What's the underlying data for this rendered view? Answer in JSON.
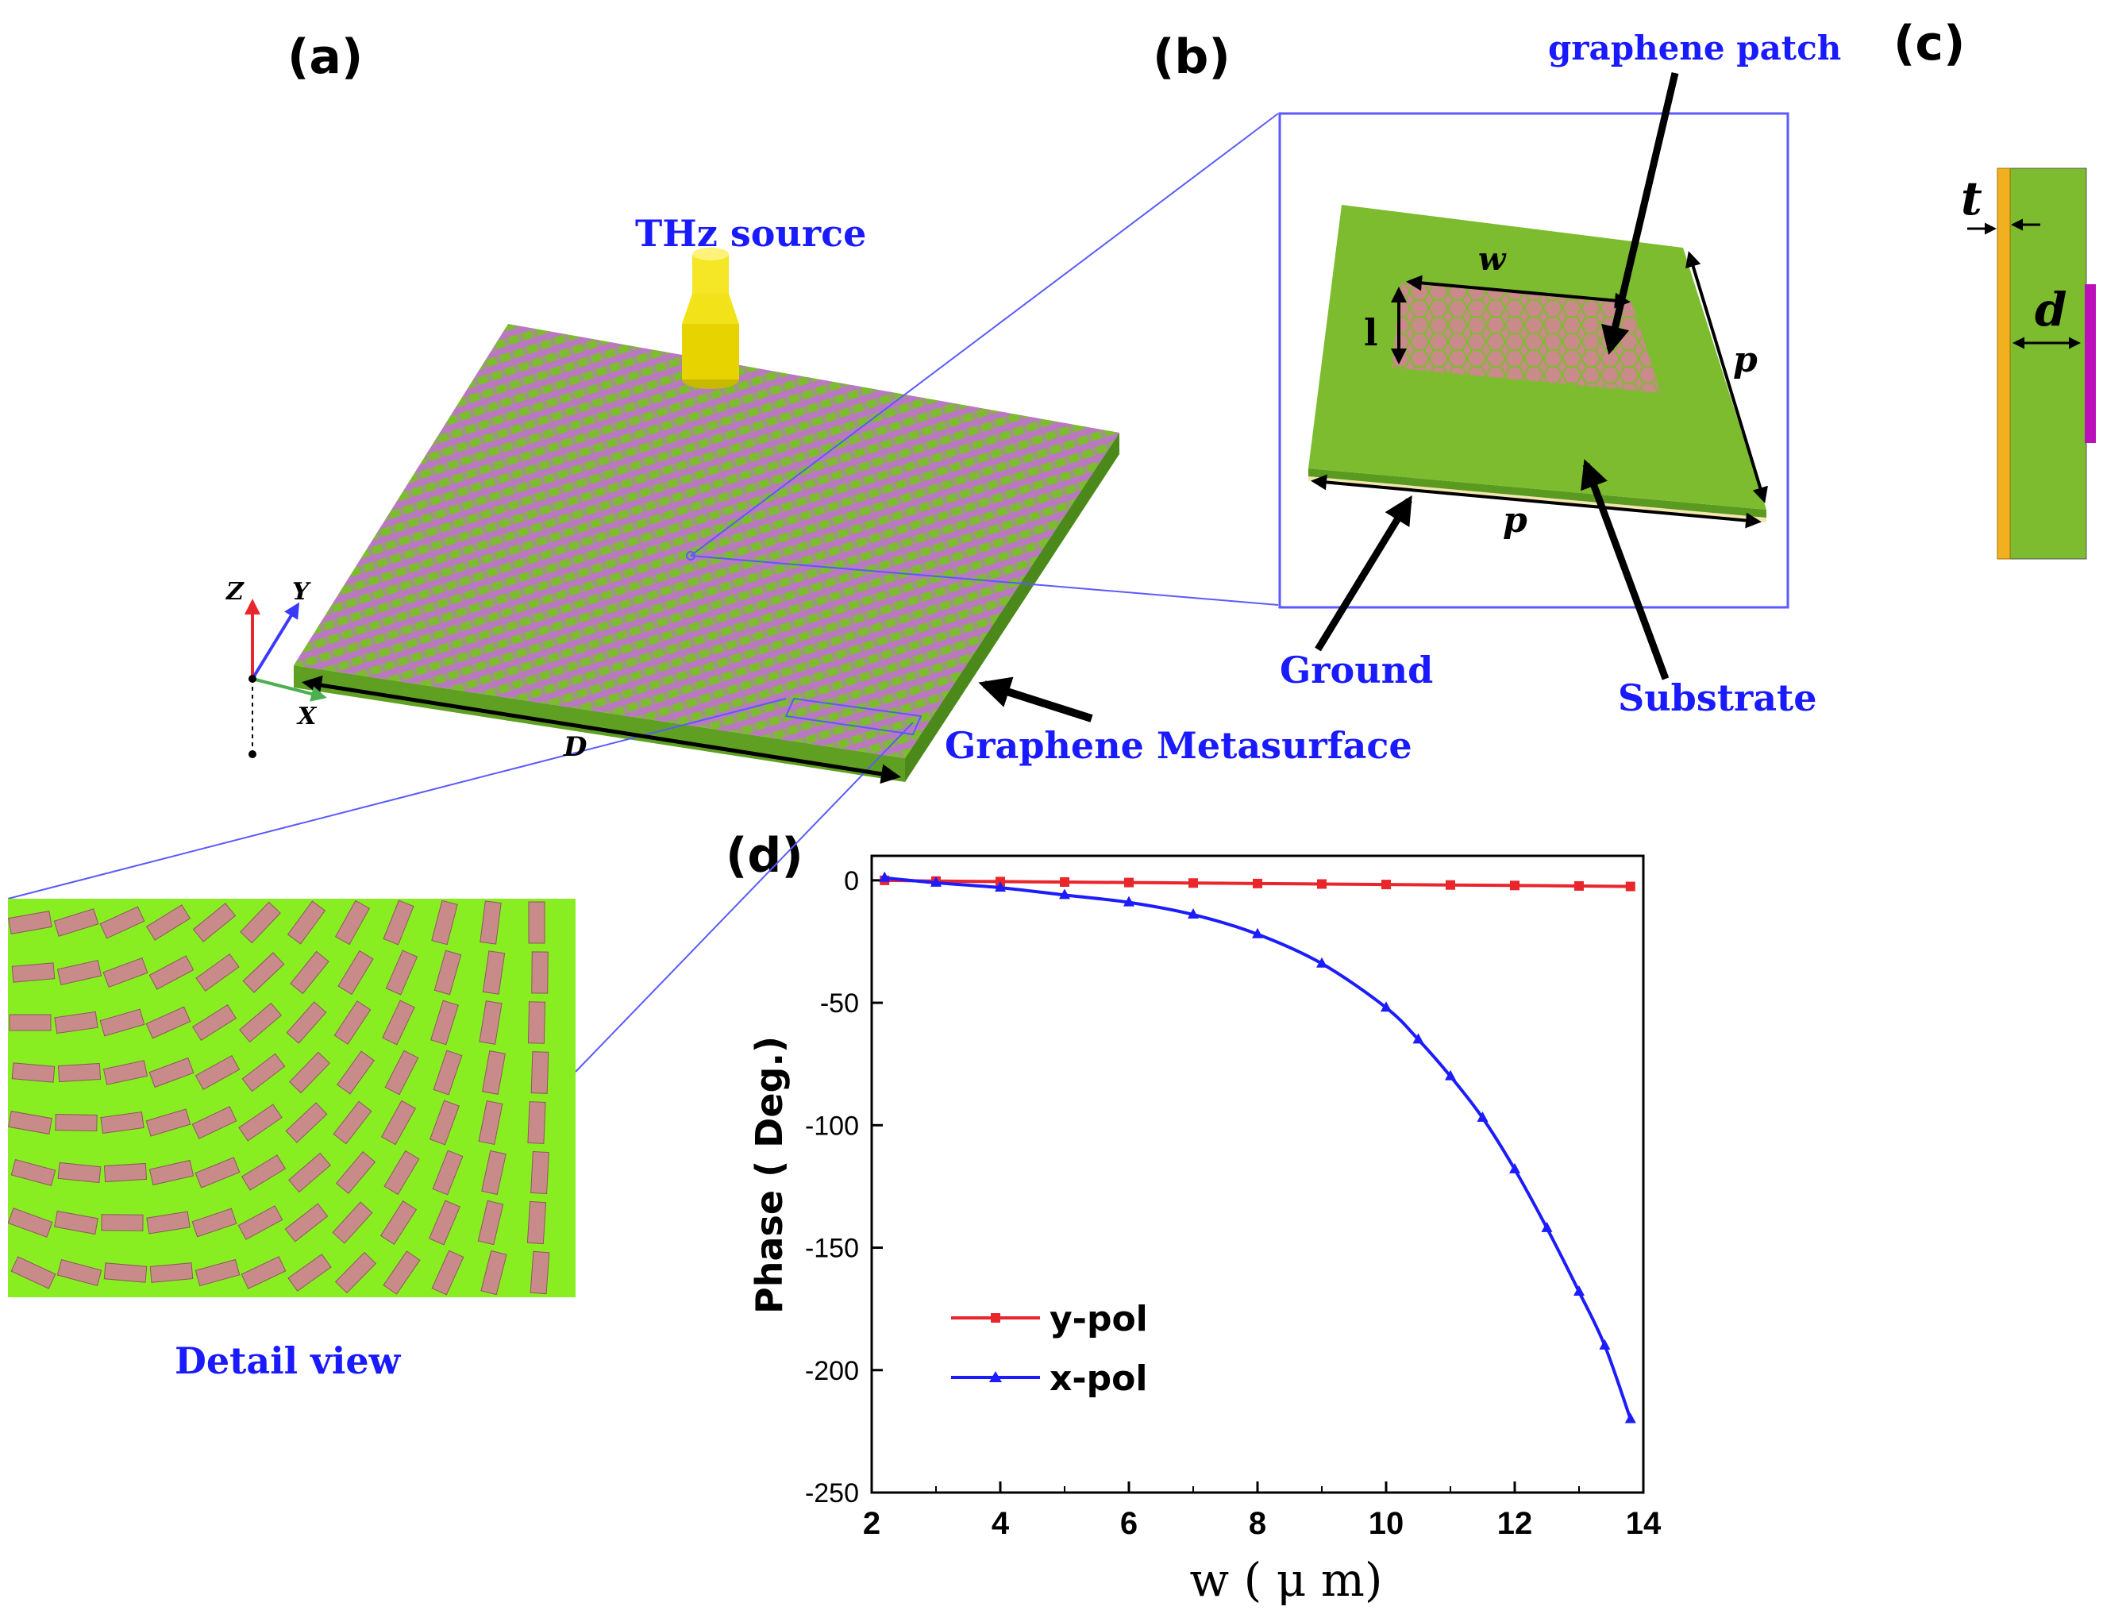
{
  "panels": {
    "a": "(a)",
    "b": "(b)",
    "c": "(c)",
    "d": "(d)"
  },
  "panel_a": {
    "source_label": "THz source",
    "metasurface_label": "Graphene Metasurface",
    "dimension_label": "D",
    "axis_z": "Z",
    "axis_y": "Y",
    "axis_x": "X",
    "detail_label": "Detail view"
  },
  "panel_b": {
    "patch_label": "graphene patch",
    "width_label": "w",
    "length_label": "l",
    "period_label_side": "p",
    "period_label_bottom": "p",
    "ground_label": "Ground",
    "substrate_label": "Substrate"
  },
  "panel_c": {
    "thickness_label": "t",
    "depth_label": "d"
  },
  "colors": {
    "substrate_green": "#7cbc2e",
    "detail_green": "#88ee22",
    "patch_pink": "#c98a8a",
    "ground_gold": "#f0b020",
    "graphene_magenta": "#bb11bb",
    "label_blue": "#1a1aff",
    "y_pol": "#e8262b",
    "x_pol": "#1c1cff"
  },
  "chart_data": {
    "type": "line",
    "xlabel": "w ( μ m)",
    "ylabel": "Phase ( Deg.)",
    "xlim": [
      2,
      14
    ],
    "ylim": [
      -250,
      10
    ],
    "xticks": [
      "2",
      "4",
      "6",
      "8",
      "10",
      "12",
      "14"
    ],
    "yticks": [
      "0",
      "-50",
      "-100",
      "-150",
      "-200",
      "-250"
    ],
    "legend_position": "lower-left",
    "series": [
      {
        "name": "y-pol",
        "marker": "square",
        "x": [
          2.2,
          3.0,
          4.0,
          5.0,
          6.0,
          7.0,
          8.0,
          9.0,
          10.0,
          11.0,
          12.0,
          13.0,
          13.8
        ],
        "y": [
          0,
          -0.3,
          -0.5,
          -0.7,
          -0.9,
          -1.1,
          -1.3,
          -1.5,
          -1.7,
          -1.9,
          -2.1,
          -2.3,
          -2.5
        ]
      },
      {
        "name": "x-pol",
        "marker": "triangle",
        "x": [
          2.2,
          3.0,
          4.0,
          5.0,
          6.0,
          7.0,
          8.0,
          9.0,
          10.0,
          10.5,
          11.0,
          11.5,
          12.0,
          12.5,
          13.0,
          13.4,
          13.8
        ],
        "y": [
          1,
          -1,
          -3,
          -6,
          -9,
          -14,
          -22,
          -34,
          -52,
          -65,
          -80,
          -97,
          -118,
          -142,
          -168,
          -190,
          -220
        ]
      }
    ]
  }
}
